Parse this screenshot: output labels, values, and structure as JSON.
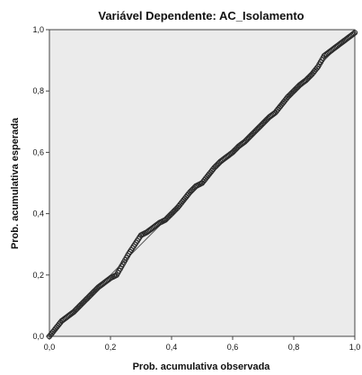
{
  "chart_data": {
    "type": "scatter",
    "title": "Variável Dependente: AC_Isolamento",
    "xlabel": "Prob. acumulativa observada",
    "ylabel": "Prob. acumulativa esperada",
    "xlim": [
      0,
      1
    ],
    "ylim": [
      0,
      1
    ],
    "grid": false,
    "legend": "none",
    "x_ticks": [
      "0,0",
      "0,2",
      "0,4",
      "0,6",
      "0,8",
      "1,0"
    ],
    "y_ticks": [
      "0,0",
      "0,2",
      "0,4",
      "0,6",
      "0,8",
      "1,0"
    ],
    "reference_line": {
      "x": [
        0,
        1
      ],
      "y": [
        0,
        1
      ]
    },
    "series": [
      {
        "x": [
          0.0,
          0.02,
          0.04,
          0.06,
          0.08,
          0.1,
          0.12,
          0.14,
          0.16,
          0.18,
          0.2,
          0.22,
          0.24,
          0.26,
          0.28,
          0.3,
          0.32,
          0.34,
          0.36,
          0.38,
          0.4,
          0.42,
          0.44,
          0.46,
          0.48,
          0.5,
          0.52,
          0.54,
          0.56,
          0.58,
          0.6,
          0.62,
          0.64,
          0.66,
          0.68,
          0.7,
          0.72,
          0.74,
          0.76,
          0.78,
          0.8,
          0.82,
          0.84,
          0.86,
          0.88,
          0.9,
          0.92,
          0.94,
          0.96,
          0.98,
          1.0
        ],
        "y": [
          0.0,
          0.025,
          0.05,
          0.065,
          0.08,
          0.1,
          0.12,
          0.14,
          0.16,
          0.175,
          0.19,
          0.2,
          0.235,
          0.27,
          0.3,
          0.33,
          0.34,
          0.355,
          0.37,
          0.38,
          0.4,
          0.42,
          0.445,
          0.47,
          0.49,
          0.5,
          0.525,
          0.55,
          0.57,
          0.585,
          0.6,
          0.62,
          0.635,
          0.655,
          0.675,
          0.695,
          0.715,
          0.73,
          0.755,
          0.78,
          0.8,
          0.82,
          0.835,
          0.855,
          0.88,
          0.915,
          0.93,
          0.945,
          0.96,
          0.975,
          0.99
        ]
      }
    ],
    "colors": {
      "plot_bg": "#ebebeb",
      "marker": "#2a2a2a",
      "line": "#555555",
      "frame": "#444444"
    }
  }
}
